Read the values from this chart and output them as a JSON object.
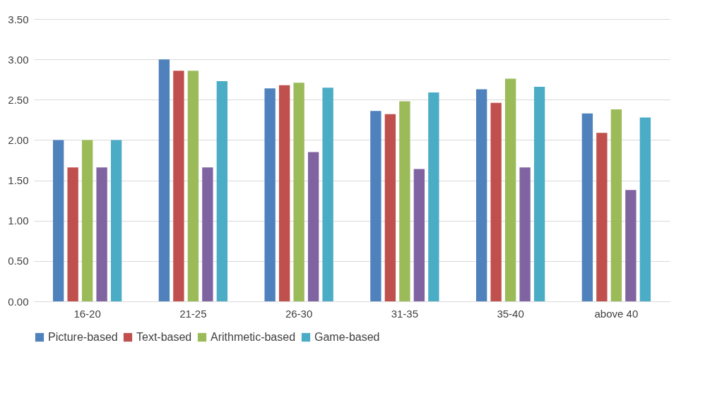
{
  "chart_data": {
    "type": "bar",
    "categories": [
      "16-20",
      "21-25",
      "26-30",
      "31-35",
      "35-40",
      "above 40"
    ],
    "series": [
      {
        "name": "Picture-based",
        "color": "#4f81bd",
        "values": [
          2.0,
          3.0,
          2.64,
          2.36,
          2.63,
          2.33
        ]
      },
      {
        "name": "Text-based",
        "color": "#c0504d",
        "values": [
          1.66,
          2.86,
          2.68,
          2.32,
          2.46,
          2.09
        ]
      },
      {
        "name": "Arithmetic-based",
        "color": "#9bbb59",
        "values": [
          2.0,
          2.86,
          2.71,
          2.48,
          2.76,
          2.38
        ]
      },
      {
        "color": "#8064a2",
        "values": [
          1.66,
          1.66,
          1.85,
          1.64,
          1.66,
          1.38
        ]
      },
      {
        "name": "Game-based",
        "color": "#4bacc6",
        "values": [
          2.0,
          2.73,
          2.65,
          2.59,
          2.66,
          2.28
        ]
      }
    ],
    "ylim": [
      0,
      3.5
    ],
    "yticks": [
      {
        "value": 0,
        "label": "0.00"
      },
      {
        "value": 0.5,
        "label": "0.50"
      },
      {
        "value": 1,
        "label": "1.00"
      },
      {
        "value": 1.5,
        "label": "1.50"
      },
      {
        "value": 2,
        "label": "2.00"
      },
      {
        "value": 2.5,
        "label": "2.50"
      },
      {
        "value": 3,
        "label": "3.00"
      },
      {
        "value": 3.5,
        "label": "3.50"
      }
    ],
    "grid": "y",
    "legend": "bottom"
  }
}
